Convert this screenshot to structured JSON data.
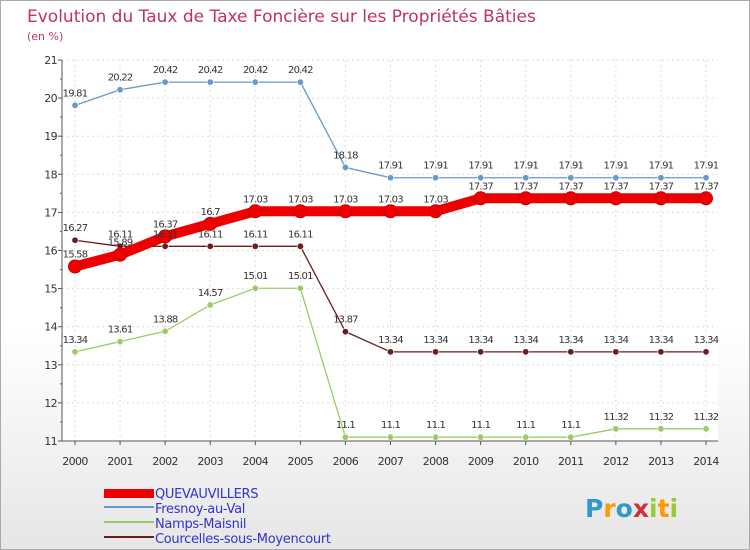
{
  "chart_data": {
    "type": "line",
    "title": "Evolution du Taux de Taxe Foncière sur les Propriétés Bâties",
    "subtitle": "(en %)",
    "xlabel": "",
    "ylabel": "",
    "ylim": [
      11,
      21
    ],
    "grid": true,
    "categories": [
      "2000",
      "2001",
      "2002",
      "2003",
      "2004",
      "2005",
      "2006",
      "2007",
      "2008",
      "2009",
      "2010",
      "2011",
      "2012",
      "2013",
      "2014"
    ],
    "yticks": [
      "11",
      "12",
      "13",
      "14",
      "15",
      "16",
      "17",
      "18",
      "19",
      "20",
      "21"
    ],
    "series": [
      {
        "name": "Courcelles-sous-Moyencourt",
        "color": "#6b1c1c",
        "values": [
          16.27,
          16.11,
          16.11,
          16.11,
          16.11,
          16.11,
          13.87,
          13.34,
          13.34,
          13.34,
          13.34,
          13.34,
          13.34,
          13.34,
          13.34
        ],
        "labels": [
          "16.27",
          "16.11",
          "16.11",
          "16.11",
          "16.11",
          "16.11",
          "13.87",
          "13.34",
          "13.34",
          "13.34",
          "13.34",
          "13.34",
          "13.34",
          "13.34",
          "13.34"
        ]
      },
      {
        "name": "Namps-Maisnil",
        "color": "#99cc66",
        "values": [
          13.34,
          13.61,
          13.88,
          14.57,
          15.01,
          15.01,
          11.1,
          11.1,
          11.1,
          11.1,
          11.1,
          11.1,
          11.32,
          11.32,
          11.32
        ],
        "labels": [
          "13.34",
          "13.61",
          "13.88",
          "14.57",
          "15.01",
          "15.01",
          "11.1",
          "11.1",
          "11.1",
          "11.1",
          "11.1",
          "11.1",
          "11.32",
          "11.32",
          "11.32"
        ]
      },
      {
        "name": "Fresnoy-au-Val",
        "color": "#6699cc",
        "values": [
          19.81,
          20.22,
          20.42,
          20.42,
          20.42,
          20.42,
          18.18,
          17.91,
          17.91,
          17.91,
          17.91,
          17.91,
          17.91,
          17.91,
          17.91
        ],
        "labels": [
          "19.81",
          "20.22",
          "20.42",
          "20.42",
          "20.42",
          "20.42",
          "18.18",
          "17.91",
          "17.91",
          "17.91",
          "17.91",
          "17.91",
          "17.91",
          "17.91",
          "17.91"
        ]
      },
      {
        "name": "QUEVAUVILLERS",
        "color": "#ee0000",
        "values": [
          15.58,
          15.89,
          16.37,
          16.7,
          17.03,
          17.03,
          17.03,
          17.03,
          17.03,
          17.37,
          17.37,
          17.37,
          17.37,
          17.37,
          17.37
        ],
        "labels": [
          "15.58",
          "15.89",
          "16.37",
          "16.7",
          "17.03",
          "17.03",
          "17.03",
          "17.03",
          "17.03",
          "17.37",
          "17.37",
          "17.37",
          "17.37",
          "17.37",
          "17.37"
        ]
      }
    ],
    "legend": {
      "placement": "bottom-left",
      "items": [
        {
          "name": "QUEVAUVILLERS",
          "color": "#ee0000",
          "text_color": "#3333cc"
        },
        {
          "name": "Fresnoy-au-Val",
          "color": "#6699cc",
          "text_color": "#3333cc"
        },
        {
          "name": "Namps-Maisnil",
          "color": "#99cc66",
          "text_color": "#3333cc"
        },
        {
          "name": "Courcelles-sous-Moyencourt",
          "color": "#6b1c1c",
          "text_color": "#3333cc"
        }
      ]
    }
  },
  "logo": {
    "letters": [
      "P",
      "r",
      "o",
      "x",
      "i",
      "t",
      "i"
    ],
    "colors": [
      "#3399cc",
      "#ff9900",
      "#3399cc",
      "#cc3333",
      "#99cc33",
      "#ff9900",
      "#99cc33"
    ]
  }
}
